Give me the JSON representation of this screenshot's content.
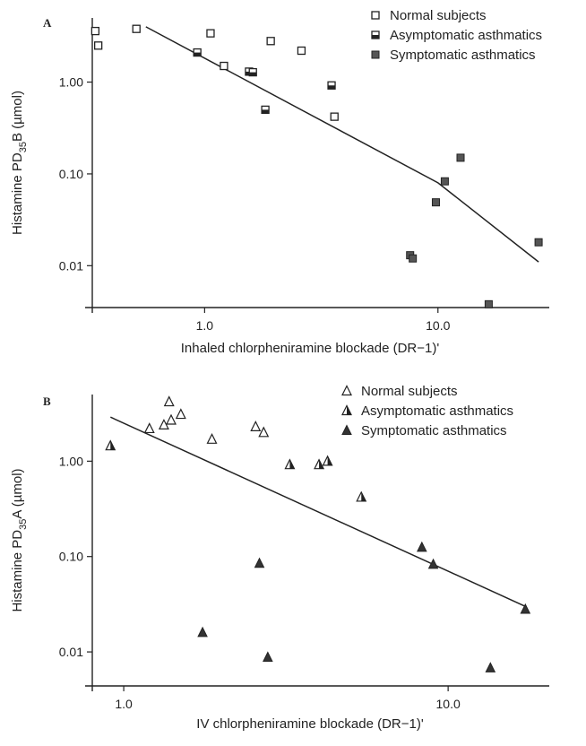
{
  "chart_data": [
    {
      "panel": "A",
      "type": "scatter",
      "xscale": "log",
      "yscale": "log",
      "xlim": [
        0.33,
        30
      ],
      "ylim": [
        0.0035,
        5.0
      ],
      "xticks": [
        {
          "value": 1,
          "label": "1.0"
        },
        {
          "value": 10,
          "label": "10.0"
        }
      ],
      "yticks": [
        {
          "value": 1,
          "label": "1.00"
        },
        {
          "value": 0.1,
          "label": "0.10"
        },
        {
          "value": 0.01,
          "label": "0.01"
        }
      ],
      "xlabel": "Inhaled chlorpheniramine blockade (DR−1)'",
      "ylabel_parts": [
        "Histamine PD",
        "35",
        "B (µmol)"
      ],
      "legend": {
        "placement": "top-right",
        "entries": [
          {
            "name": "Normal subjects",
            "marker": "open-square"
          },
          {
            "name": "Asymptomatic asthmatics",
            "marker": "half-square"
          },
          {
            "name": "Symptomatic asthmatics",
            "marker": "filled-square"
          }
        ]
      },
      "series": [
        {
          "name": "Normal subjects",
          "marker": "open-square",
          "points": [
            [
              0.34,
              3.6
            ],
            [
              0.35,
              2.5
            ],
            [
              0.51,
              3.8
            ],
            [
              1.06,
              3.4
            ],
            [
              1.21,
              1.5
            ],
            [
              1.92,
              2.8
            ],
            [
              2.6,
              2.2
            ],
            [
              3.6,
              0.42
            ]
          ]
        },
        {
          "name": "Asymptomatic asthmatics",
          "marker": "half-square",
          "points": [
            [
              0.93,
              2.1
            ],
            [
              1.55,
              1.3
            ],
            [
              1.61,
              1.28
            ],
            [
              1.82,
              0.5
            ],
            [
              3.5,
              0.92
            ]
          ]
        },
        {
          "name": "Symptomatic asthmatics",
          "marker": "filled-square",
          "points": [
            [
              9.8,
              0.049
            ],
            [
              10.7,
              0.083
            ],
            [
              12.5,
              0.15
            ],
            [
              7.6,
              0.013
            ],
            [
              7.8,
              0.012
            ],
            [
              16.5,
              0.0038
            ],
            [
              27.0,
              0.018
            ]
          ]
        }
      ],
      "fit_line": [
        [
          0.56,
          4.0
        ],
        [
          10.0,
          0.08
        ],
        [
          27.0,
          0.011
        ]
      ]
    },
    {
      "panel": "B",
      "type": "scatter",
      "xscale": "log",
      "yscale": "log",
      "xlim": [
        0.8,
        20.5
      ],
      "ylim": [
        0.0044,
        5.0
      ],
      "xticks": [
        {
          "value": 1,
          "label": "1.0"
        },
        {
          "value": 10,
          "label": "10.0"
        }
      ],
      "yticks": [
        {
          "value": 1,
          "label": "1.00"
        },
        {
          "value": 0.1,
          "label": "0.10"
        },
        {
          "value": 0.01,
          "label": "0.01"
        }
      ],
      "xlabel": "IV chlorpheniramine blockade (DR−1)'",
      "ylabel_parts": [
        "Histamine PD",
        "35",
        "A (µmol)"
      ],
      "legend": {
        "placement": "top-right",
        "entries": [
          {
            "name": "Normal subjects",
            "marker": "open-triangle"
          },
          {
            "name": "Asymptomatic asthmatics",
            "marker": "half-triangle"
          },
          {
            "name": "Symptomatic asthmatics",
            "marker": "filled-triangle"
          }
        ]
      },
      "series": [
        {
          "name": "Normal subjects",
          "marker": "open-triangle",
          "points": [
            [
              1.2,
              2.2
            ],
            [
              1.33,
              2.4
            ],
            [
              1.38,
              4.2
            ],
            [
              1.4,
              2.7
            ],
            [
              1.5,
              3.1
            ],
            [
              1.87,
              1.7
            ],
            [
              2.55,
              2.3
            ],
            [
              2.7,
              2.0
            ]
          ]
        },
        {
          "name": "Asymptomatic asthmatics",
          "marker": "half-triangle",
          "points": [
            [
              0.91,
              1.45
            ],
            [
              3.25,
              0.92
            ],
            [
              4.0,
              0.92
            ],
            [
              4.25,
              1.0
            ],
            [
              5.4,
              0.42
            ]
          ]
        },
        {
          "name": "Symptomatic asthmatics",
          "marker": "filled-triangle",
          "points": [
            [
              1.75,
              0.016
            ],
            [
              2.62,
              0.085
            ],
            [
              2.78,
              0.0088
            ],
            [
              8.3,
              0.125
            ],
            [
              9.0,
              0.083
            ],
            [
              13.5,
              0.0068
            ],
            [
              17.3,
              0.028
            ]
          ]
        }
      ],
      "fit_line": [
        [
          0.91,
          2.9
        ],
        [
          17.3,
          0.03
        ]
      ]
    }
  ]
}
